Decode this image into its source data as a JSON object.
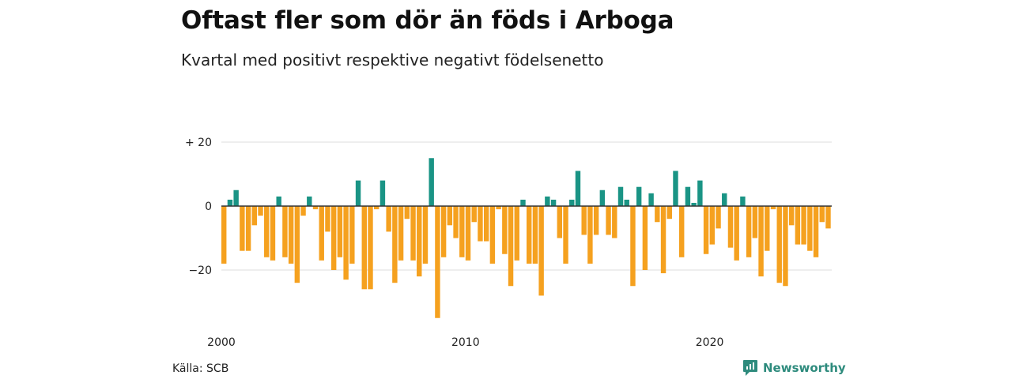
{
  "title": "Oftast fler som dör än föds i Arboga",
  "subtitle": "Kvartal med positivt respektive negativt födelsenetto",
  "source": "Källa: SCB",
  "brand": "Newsworthy",
  "icon": "newsworthy-logo-icon",
  "colors": {
    "positive": "#1a9485",
    "negative": "#f5a11f",
    "grid": "#dddddd",
    "zero": "#333333"
  },
  "chart_data": {
    "type": "bar",
    "x_start": "2000 Q1",
    "x_ticks": [
      {
        "label": "2000",
        "index": 0
      },
      {
        "label": "2010",
        "index": 40
      },
      {
        "label": "2020",
        "index": 80
      }
    ],
    "y_ticks": [
      {
        "label": "+ 20",
        "value": 20
      },
      {
        "label": "0",
        "value": 0
      },
      {
        "label": "−20",
        "value": -20
      }
    ],
    "ylim": [
      -36,
      20
    ],
    "grid": true,
    "values": [
      -18,
      2,
      5,
      -14,
      -14,
      -6,
      -3,
      -16,
      -17,
      3,
      -16,
      -18,
      -24,
      -3,
      3,
      -1,
      -17,
      -8,
      -20,
      -16,
      -23,
      -18,
      8,
      -26,
      -26,
      -1,
      8,
      -8,
      -24,
      -17,
      -4,
      -17,
      -22,
      -18,
      15,
      -35,
      -16,
      -6,
      -10,
      -16,
      -17,
      -5,
      -11,
      -11,
      -18,
      -1,
      -15,
      -25,
      -17,
      2,
      -18,
      -18,
      -28,
      3,
      2,
      -10,
      -18,
      2,
      11,
      -9,
      -18,
      -9,
      5,
      -9,
      -10,
      6,
      2,
      -25,
      6,
      -20,
      4,
      -5,
      -21,
      -4,
      11,
      -16,
      6,
      1,
      8,
      -15,
      -12,
      -7,
      4,
      -13,
      -17,
      3,
      -16,
      -10,
      -22,
      -14,
      -1,
      -24,
      -25,
      -6,
      -12,
      -12,
      -14,
      -16,
      -5,
      -7
    ]
  }
}
